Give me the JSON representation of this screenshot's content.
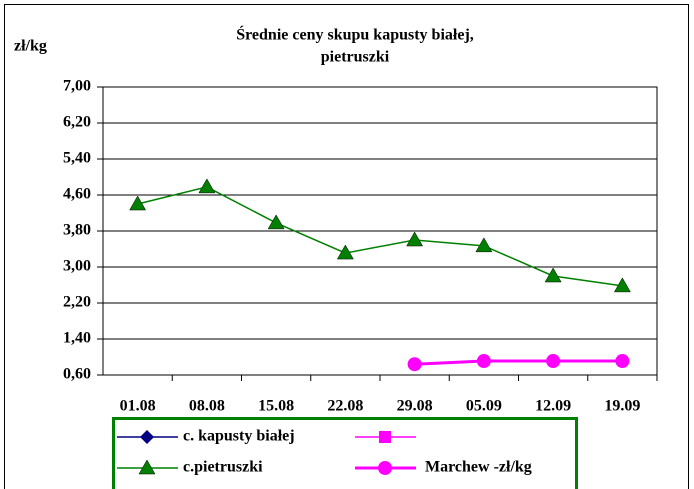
{
  "chart_data": {
    "type": "line",
    "title": [
      "Średnie ceny skupu  kapusty białej,",
      "pietruszki"
    ],
    "y_label": "zł/kg",
    "categories": [
      "01.08",
      "08.08",
      "15.08",
      "22.08",
      "29.08",
      "05.09",
      "12.09",
      "19.09"
    ],
    "series": [
      {
        "name": "c. kapusty białej",
        "color": "#000080",
        "marker": "diamond",
        "values": [
          null,
          null,
          null,
          null,
          null,
          null,
          null,
          null
        ]
      },
      {
        "color": "#ff00ff",
        "marker": "square",
        "values": [
          null,
          null,
          null,
          null,
          null,
          null,
          null,
          null
        ]
      },
      {
        "name": "c.pietruszki",
        "color": "#008000",
        "marker": "triangle",
        "values": [
          4.4,
          4.78,
          3.98,
          3.31,
          3.6,
          3.47,
          2.8,
          2.58
        ]
      },
      {
        "name": "Marchew -zł/kg",
        "color": "#ff00ff",
        "marker": "circle",
        "values": [
          null,
          null,
          null,
          null,
          0.84,
          0.91,
          0.91,
          0.91
        ]
      }
    ],
    "ylim": [
      0.6,
      7.0
    ],
    "yticks": [
      {
        "value": 0.6,
        "label": "0,60"
      },
      {
        "value": 1.4,
        "label": "1,40"
      },
      {
        "value": 2.2,
        "label": "2,20"
      },
      {
        "value": 3.0,
        "label": "3,00"
      },
      {
        "value": 3.8,
        "label": "3,80"
      },
      {
        "value": 4.6,
        "label": "4,60"
      },
      {
        "value": 5.4,
        "label": "5,40"
      },
      {
        "value": 6.2,
        "label": "6,20"
      },
      {
        "value": 7.0,
        "label": "7,00"
      }
    ],
    "grid": true
  }
}
